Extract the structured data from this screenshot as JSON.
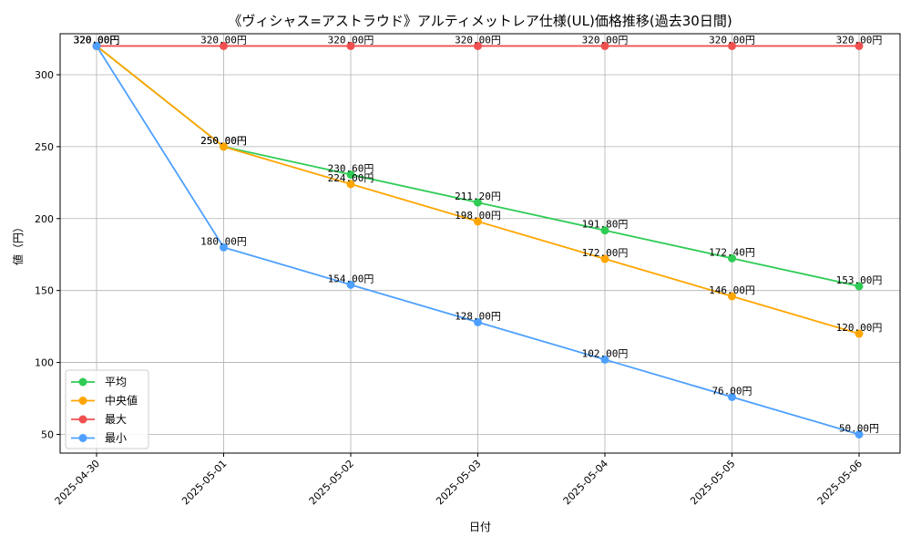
{
  "chart_data": {
    "type": "line",
    "title": "《ヴィシャス=アストラウド》アルティメットレア仕様(UL)価格推移(過去30日間)",
    "xlabel": "日付",
    "ylabel": "値（円）",
    "categories": [
      "2025-04-30",
      "2025-05-01",
      "2025-05-02",
      "2025-05-03",
      "2025-05-04",
      "2025-05-05",
      "2025-05-06"
    ],
    "ylim": [
      37,
      328.5
    ],
    "yticks": [
      50,
      100,
      150,
      200,
      250,
      300
    ],
    "grid": true,
    "legend_position": "lower-left",
    "series": [
      {
        "name": "平均",
        "color": "#2ecc55",
        "values": [
          320,
          250,
          230.6,
          211.2,
          191.8,
          172.4,
          153
        ],
        "labels": [
          "320.00円",
          "250.00円",
          "230.60円",
          "211.20円",
          "191.80円",
          "172.40円",
          "153.00円"
        ]
      },
      {
        "name": "中央値",
        "color": "#ffa500",
        "values": [
          320,
          250,
          224,
          198,
          172,
          146,
          120
        ],
        "labels": [
          "320.00円",
          "250.00円",
          "224.00円",
          "198.00円",
          "172.00円",
          "146.00円",
          "120.00円"
        ]
      },
      {
        "name": "最大",
        "color": "#f05050",
        "values": [
          320,
          320,
          320,
          320,
          320,
          320,
          320
        ],
        "labels": [
          "320.00円",
          "320.00円",
          "320.00円",
          "320.00円",
          "320.00円",
          "320.00円",
          "320.00円"
        ]
      },
      {
        "name": "最小",
        "color": "#4da0ff",
        "values": [
          320,
          180,
          154,
          128,
          102,
          76,
          50
        ],
        "labels": [
          "320.00円",
          "180.00円",
          "154.00円",
          "128.00円",
          "102.00円",
          "76.00円",
          "50.00円"
        ]
      }
    ]
  }
}
